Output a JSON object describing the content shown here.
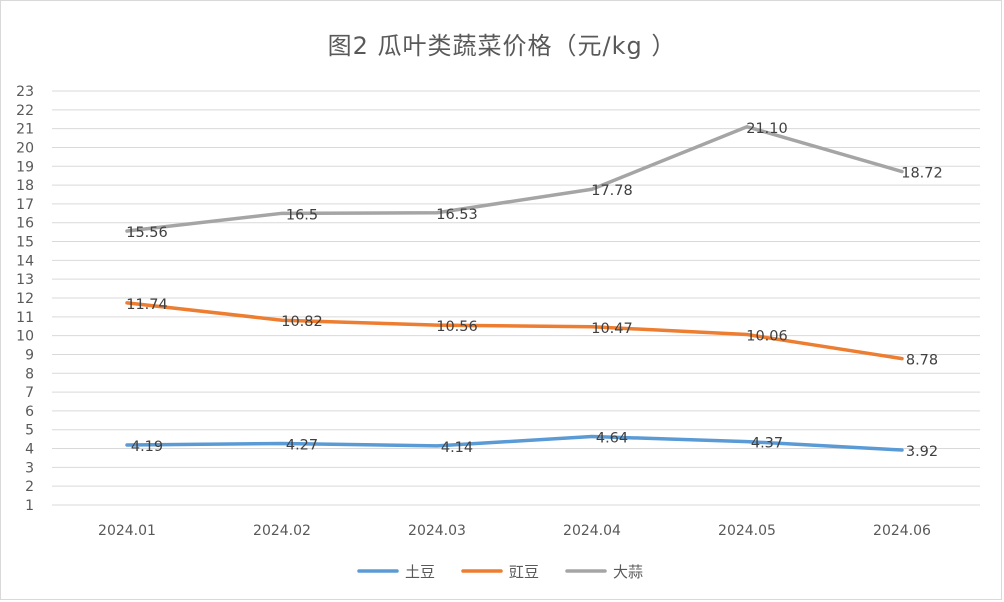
{
  "chart_data": {
    "type": "line",
    "title": "图2  瓜叶类蔬菜价格（元/kg ）",
    "categories": [
      "2024.01",
      "2024.02",
      "2024.03",
      "2024.04",
      "2024.05",
      "2024.06"
    ],
    "ylim": [
      1,
      23
    ],
    "yticks": [
      1,
      2,
      3,
      4,
      5,
      6,
      7,
      8,
      9,
      10,
      11,
      12,
      13,
      14,
      15,
      16,
      17,
      18,
      19,
      20,
      21,
      22,
      23
    ],
    "grid": true,
    "legend_position": "bottom",
    "series": [
      {
        "name": "土豆",
        "color": "#5B9BD5",
        "values": [
          4.19,
          4.27,
          4.14,
          4.64,
          4.37,
          3.92
        ],
        "labels": [
          "4.19",
          "4.27",
          "4.14",
          "4.64",
          "4.37",
          "3.92"
        ]
      },
      {
        "name": "豇豆",
        "color": "#ED7D31",
        "values": [
          11.74,
          10.82,
          10.56,
          10.47,
          10.06,
          8.78
        ],
        "labels": [
          "11.74",
          "10.82",
          "10.56",
          "10.47",
          "10.06",
          "8.78"
        ]
      },
      {
        "name": "大蒜",
        "color": "#A5A5A5",
        "values": [
          15.56,
          16.5,
          16.53,
          17.78,
          21.1,
          18.72
        ],
        "labels": [
          "15.56",
          "16.5",
          "16.53",
          "17.78",
          "21.10",
          "18.72"
        ]
      }
    ]
  }
}
